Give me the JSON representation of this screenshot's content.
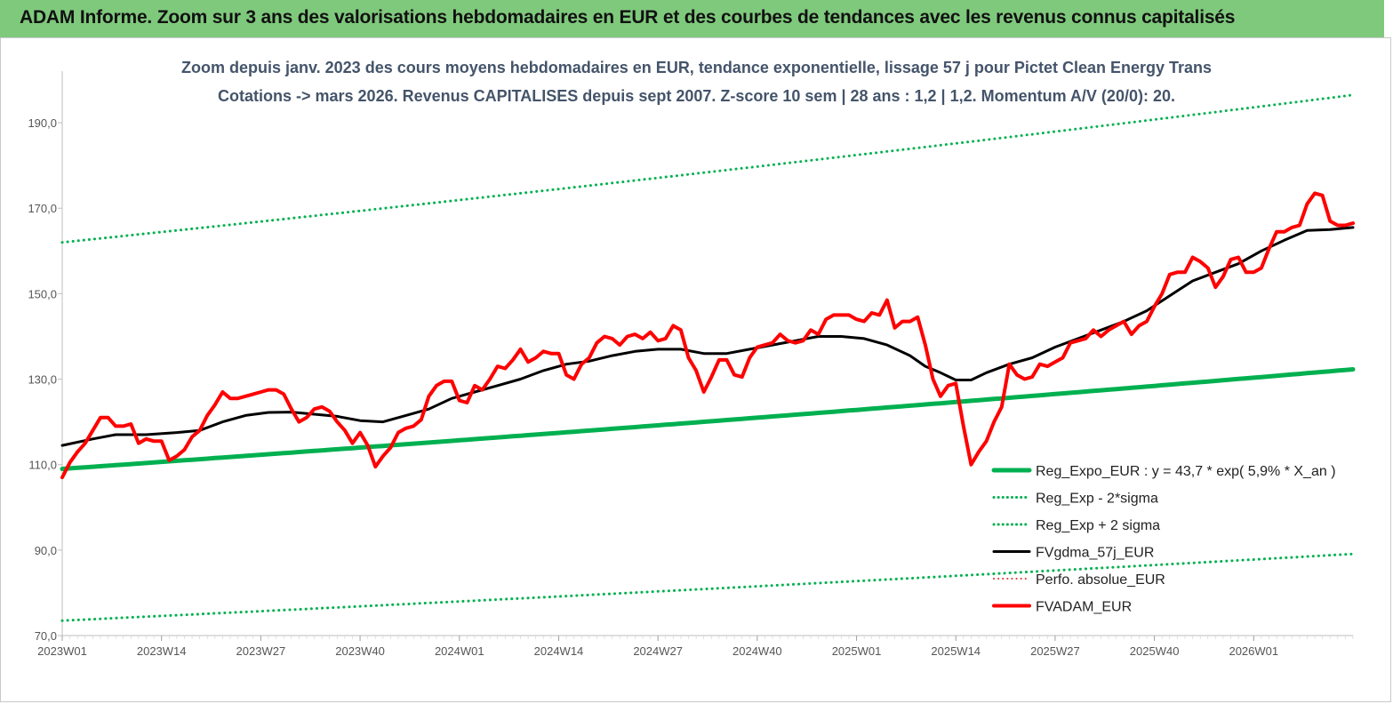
{
  "banner": {
    "title": "ADAM Informe. Zoom sur 3 ans des valorisations hebdomadaires en EUR et des courbes de tendances avec les revenus connus capitalisés"
  },
  "chart_data": {
    "type": "line",
    "title": "Zoom depuis janv.  2023 des cours moyens hebdomadaires en EUR, tendance exponentielle, lissage 57 j pour Pictet Clean Energy Trans",
    "subtitle": "Cotations -> mars 2026. Revenus CAPITALISES depuis sept 2007. Z-score 10 sem | 28 ans : 1,2 | 1,2. Momentum A/V (20/0): 20.",
    "xlabel": "",
    "ylabel": "",
    "ylim": [
      70,
      200
    ],
    "yticks": [
      "70,0",
      "90,0",
      "110,0",
      "130,0",
      "150,0",
      "170,0",
      "190,0"
    ],
    "yticks_values": [
      70,
      90,
      110,
      130,
      150,
      170,
      190
    ],
    "x_range": [
      1,
      170
    ],
    "xticks": [
      "2023W01",
      "2023W14",
      "2023W27",
      "2023W40",
      "2024W01",
      "2024W14",
      "2024W27",
      "2024W40",
      "2025W01",
      "2025W14",
      "2025W27",
      "2025W40",
      "2026W01"
    ],
    "xticks_index": [
      1,
      14,
      27,
      40,
      53,
      66,
      79,
      92,
      105,
      118,
      131,
      144,
      157
    ],
    "grid": false,
    "legend_position": "bottom-right",
    "series": [
      {
        "name": "Reg_Expo_EUR : y = 43,7 * exp( 5,9% *  X_an )",
        "style": "solid",
        "color": "#00b050",
        "width": 5,
        "x": [
          1,
          170
        ],
        "values": [
          109.0,
          132.3
        ],
        "interpolation": "exponential"
      },
      {
        "name": "Reg_Exp - 2*sigma",
        "style": "dotted",
        "color": "#00b050",
        "width": 3,
        "x": [
          1,
          170
        ],
        "values": [
          73.5,
          89.1
        ],
        "interpolation": "exponential"
      },
      {
        "name": "Reg_Exp + 2 sigma",
        "style": "dotted",
        "color": "#00b050",
        "width": 3,
        "x": [
          1,
          170
        ],
        "values": [
          162.0,
          196.5
        ],
        "interpolation": "exponential"
      },
      {
        "name": "FVgdma_57j_EUR",
        "style": "solid",
        "color": "#000000",
        "width": 3,
        "x": [
          1,
          5,
          8,
          12,
          16,
          19,
          22,
          25,
          28,
          31,
          34,
          37,
          40,
          43,
          46,
          49,
          52,
          55,
          58,
          61,
          64,
          67,
          70,
          73,
          76,
          79,
          82,
          85,
          88,
          91,
          94,
          97,
          100,
          103,
          106,
          109,
          112,
          114,
          116,
          118,
          120,
          122,
          125,
          128,
          131,
          134,
          137,
          140,
          143,
          146,
          149,
          152,
          155,
          158,
          161,
          164,
          167,
          170
        ],
        "values": [
          114.5,
          116.0,
          117.0,
          117.0,
          117.5,
          118.0,
          120.0,
          121.5,
          122.2,
          122.3,
          121.8,
          121.3,
          120.3,
          120.0,
          121.5,
          123.0,
          125.5,
          127.0,
          128.5,
          130.0,
          132.0,
          133.5,
          134.2,
          135.5,
          136.5,
          137.0,
          137.0,
          136.0,
          136.0,
          137.0,
          138.0,
          139.0,
          140.0,
          140.0,
          139.5,
          138.0,
          135.5,
          133.0,
          131.5,
          129.8,
          129.8,
          131.5,
          133.5,
          135.0,
          137.5,
          139.5,
          141.5,
          143.5,
          146.0,
          149.5,
          153.0,
          155.0,
          157.0,
          160.0,
          162.5,
          164.8,
          165.0,
          165.5
        ]
      },
      {
        "name": "Perfo. absolue_EUR",
        "style": "dotted",
        "color": "#e03030",
        "width": 2,
        "x": [],
        "values": []
      },
      {
        "name": "FVADAM_EUR",
        "style": "solid",
        "color": "#ff0000",
        "width": 4,
        "x": [
          1,
          2,
          3,
          4,
          5,
          6,
          7,
          8,
          9,
          10,
          11,
          12,
          13,
          14,
          15,
          16,
          17,
          18,
          19,
          20,
          21,
          22,
          23,
          24,
          25,
          26,
          27,
          28,
          29,
          30,
          31,
          32,
          33,
          34,
          35,
          36,
          37,
          38,
          39,
          40,
          41,
          42,
          43,
          44,
          45,
          46,
          47,
          48,
          49,
          50,
          51,
          52,
          53,
          54,
          55,
          56,
          57,
          58,
          59,
          60,
          61,
          62,
          63,
          64,
          65,
          66,
          67,
          68,
          69,
          70,
          71,
          72,
          73,
          74,
          75,
          76,
          77,
          78,
          79,
          80,
          81,
          82,
          83,
          84,
          85,
          86,
          87,
          88,
          89,
          90,
          91,
          92,
          93,
          94,
          95,
          96,
          97,
          98,
          99,
          100,
          101,
          102,
          103,
          104,
          105,
          106,
          107,
          108,
          109,
          110,
          111,
          112,
          113,
          114,
          115,
          116,
          117,
          118,
          119,
          120,
          121,
          122,
          123,
          124,
          125,
          126,
          127,
          128,
          129,
          130,
          131,
          132,
          133,
          134,
          135,
          136,
          137,
          138,
          139,
          140,
          141,
          142,
          143,
          144,
          145,
          146,
          147,
          148,
          149,
          150,
          151,
          152,
          153,
          154,
          155,
          156,
          157,
          158,
          159,
          160,
          161,
          162,
          163,
          164,
          165,
          166,
          167,
          168,
          169,
          170
        ],
        "values": [
          107.0,
          110.5,
          113.0,
          115.0,
          118.0,
          121.0,
          121.0,
          119.0,
          119.0,
          119.5,
          115.0,
          116.0,
          115.5,
          115.5,
          111.0,
          112.0,
          113.5,
          116.5,
          118.0,
          121.5,
          124.0,
          127.0,
          125.5,
          125.5,
          126.0,
          126.5,
          127.0,
          127.5,
          127.5,
          126.5,
          123.0,
          120.0,
          121.0,
          123.0,
          123.5,
          122.5,
          120.0,
          118.0,
          115.0,
          117.5,
          114.5,
          109.5,
          112.0,
          114.0,
          117.5,
          118.5,
          119.0,
          120.5,
          126.0,
          128.5,
          129.5,
          129.5,
          125.0,
          124.5,
          128.5,
          127.5,
          130.0,
          133.0,
          132.5,
          134.5,
          137.0,
          134.0,
          135.0,
          136.5,
          136.0,
          136.0,
          131.0,
          130.0,
          133.5,
          135.0,
          138.5,
          140.0,
          139.5,
          138.0,
          140.0,
          140.5,
          139.5,
          141.0,
          139.0,
          139.5,
          142.5,
          141.5,
          135.0,
          132.0,
          127.0,
          130.5,
          134.5,
          134.5,
          131.0,
          130.5,
          135.0,
          137.5,
          138.0,
          138.5,
          140.5,
          139.0,
          138.5,
          139.0,
          141.5,
          140.5,
          144.0,
          145.0,
          145.0,
          145.0,
          144.0,
          143.5,
          145.5,
          145.0,
          148.5,
          142.0,
          143.5,
          143.5,
          144.5,
          138.0,
          130.0,
          126.0,
          128.5,
          129.0,
          119.0,
          110.0,
          113.0,
          115.5,
          120.0,
          123.5,
          133.5,
          131.0,
          130.0,
          130.5,
          133.5,
          133.0,
          134.0,
          135.0,
          138.5,
          139.0,
          139.5,
          141.5,
          140.0,
          141.5,
          142.5,
          143.5,
          140.5,
          142.5,
          143.5,
          147.0,
          150.0,
          154.5,
          155.0,
          155.0,
          158.5,
          157.5,
          156.0,
          151.5,
          154.0,
          158.0,
          158.5,
          155.0,
          155.0,
          156.0,
          160.5,
          164.5,
          164.5,
          165.5,
          166.0,
          171.0,
          173.5,
          173.0,
          167.0,
          166.0,
          166.0,
          166.5
        ]
      }
    ]
  }
}
